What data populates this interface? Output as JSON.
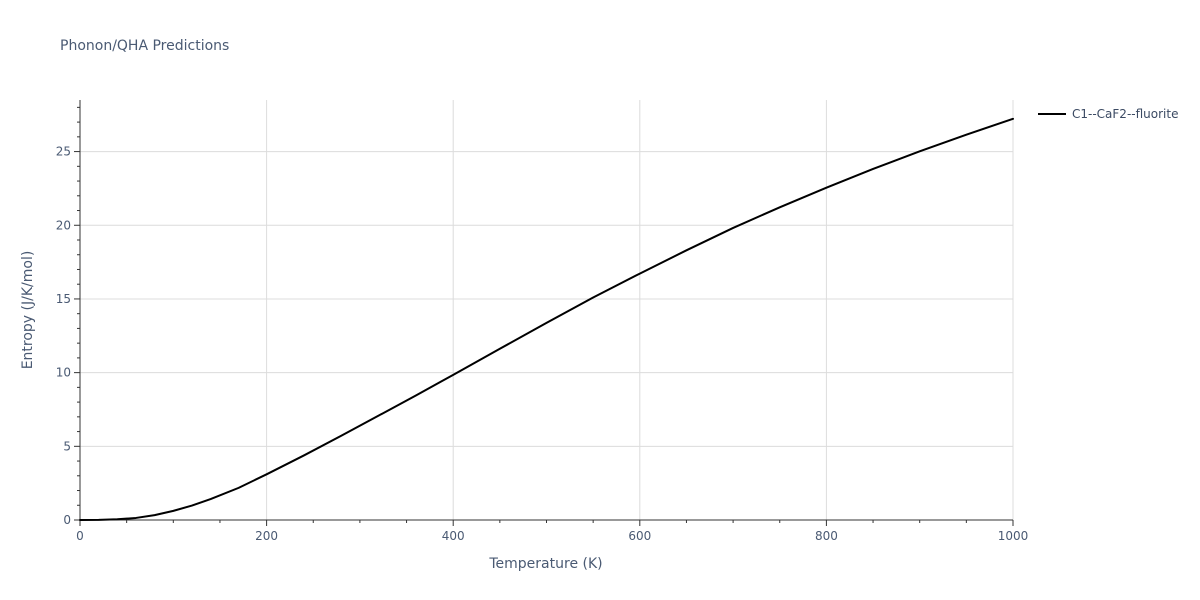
{
  "chart_data": {
    "type": "line",
    "title": "Phonon/QHA Predictions",
    "xlabel": "Temperature (K)",
    "ylabel": "Entropy (J/K/mol)",
    "xlim": [
      0,
      1000
    ],
    "ylim": [
      0,
      28.5
    ],
    "x_ticks": [
      0,
      200,
      400,
      600,
      800,
      1000
    ],
    "y_ticks": [
      0,
      5,
      10,
      15,
      20,
      25
    ],
    "x_tick_labels": [
      "0",
      "200",
      "400",
      "600",
      "800",
      "1000"
    ],
    "y_tick_labels": [
      "0",
      "5",
      "10",
      "15",
      "20",
      "25"
    ],
    "grid": true,
    "legend_position": "top-right",
    "series": [
      {
        "name": "C1--CaF2--fluorite",
        "color": "#000000",
        "x": [
          0,
          20,
          40,
          60,
          80,
          100,
          120,
          140,
          170,
          200,
          240,
          280,
          320,
          360,
          400,
          450,
          500,
          550,
          600,
          650,
          700,
          750,
          800,
          850,
          900,
          950,
          1000
        ],
        "y": [
          0,
          0.01,
          0.05,
          0.14,
          0.33,
          0.62,
          0.98,
          1.42,
          2.18,
          3.1,
          4.38,
          5.72,
          7.08,
          8.45,
          9.85,
          11.62,
          13.38,
          15.1,
          16.72,
          18.3,
          19.82,
          21.22,
          22.55,
          23.82,
          25.02,
          26.15,
          27.22
        ]
      }
    ]
  }
}
